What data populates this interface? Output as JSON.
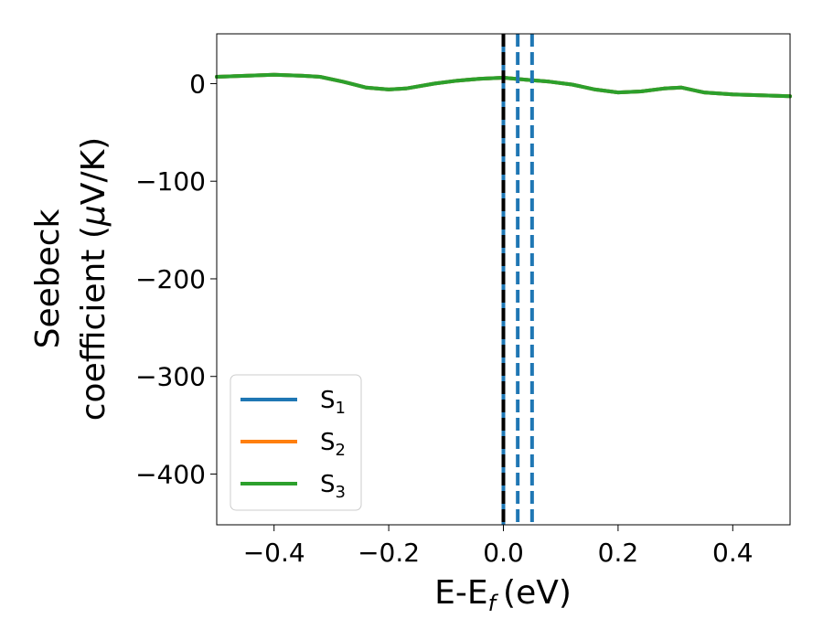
{
  "chart_data": {
    "type": "line",
    "title": "",
    "xlabel": "E-E",
    "xlabel_sub": "f",
    "xlabel_unit": "(eV)",
    "ylabel_line1": "Seebeck",
    "ylabel_line2": "coefficient  (",
    "ylabel_mu": "μ",
    "ylabel_unit": "V/K)",
    "xlim": [
      -0.5,
      0.5
    ],
    "ylim": [
      -452,
      51
    ],
    "xticks": [
      -0.4,
      -0.2,
      0.0,
      0.2,
      0.4
    ],
    "xtick_labels": [
      "−0.4",
      "−0.2",
      "0.0",
      "0.2",
      "0.4"
    ],
    "yticks": [
      0,
      -100,
      -200,
      -300,
      -400
    ],
    "ytick_labels": [
      "0",
      "−100",
      "−200",
      "−300",
      "−400"
    ],
    "grid": false,
    "legend_position": "lower-left",
    "series": [
      {
        "name": "S",
        "sub": "1",
        "color": "#1f77b4",
        "x": [
          -0.5,
          -0.45,
          -0.4,
          -0.35,
          -0.32,
          -0.28,
          -0.24,
          -0.2,
          -0.17,
          -0.12,
          -0.08,
          -0.04,
          0.0,
          0.04,
          0.08,
          0.12,
          0.16,
          0.2,
          0.24,
          0.28,
          0.31,
          0.35,
          0.4,
          0.45,
          0.5
        ],
        "y": [
          7,
          8,
          9,
          8,
          7,
          2,
          -4,
          -6,
          -5,
          0,
          3,
          5,
          6,
          4,
          2,
          -1,
          -6,
          -9,
          -8,
          -5,
          -4,
          -9,
          -11,
          -12,
          -13
        ]
      },
      {
        "name": "S",
        "sub": "2",
        "color": "#ff7f0e",
        "x": [
          -0.5,
          -0.45,
          -0.4,
          -0.35,
          -0.32,
          -0.28,
          -0.24,
          -0.2,
          -0.17,
          -0.12,
          -0.08,
          -0.04,
          0.0,
          0.04,
          0.08,
          0.12,
          0.16,
          0.2,
          0.24,
          0.28,
          0.31,
          0.35,
          0.4,
          0.45,
          0.5
        ],
        "y": [
          7,
          8,
          9,
          8,
          7,
          2,
          -4,
          -6,
          -5,
          0,
          3,
          5,
          6,
          4,
          2,
          -1,
          -6,
          -9,
          -8,
          -5,
          -4,
          -9,
          -11,
          -12,
          -13
        ]
      },
      {
        "name": "S",
        "sub": "3",
        "color": "#2ca02c",
        "x": [
          -0.5,
          -0.45,
          -0.4,
          -0.35,
          -0.32,
          -0.28,
          -0.24,
          -0.2,
          -0.17,
          -0.12,
          -0.08,
          -0.04,
          0.0,
          0.04,
          0.08,
          0.12,
          0.16,
          0.2,
          0.24,
          0.28,
          0.31,
          0.35,
          0.4,
          0.45,
          0.5
        ],
        "y": [
          7,
          8,
          9,
          8,
          7,
          2,
          -4,
          -6,
          -5,
          0,
          3,
          5,
          6,
          4,
          2,
          -1,
          -6,
          -9,
          -8,
          -5,
          -4,
          -9,
          -11,
          -12,
          -13
        ]
      }
    ],
    "vertical_lines": [
      {
        "x": 0.0,
        "color": "#1f77b4",
        "style": "solid"
      },
      {
        "x": 0.0,
        "color": "#000000",
        "style": "dashed"
      },
      {
        "x": 0.025,
        "color": "#1f77b4",
        "style": "dashed"
      },
      {
        "x": 0.05,
        "color": "#1f77b4",
        "style": "dashed"
      }
    ]
  }
}
